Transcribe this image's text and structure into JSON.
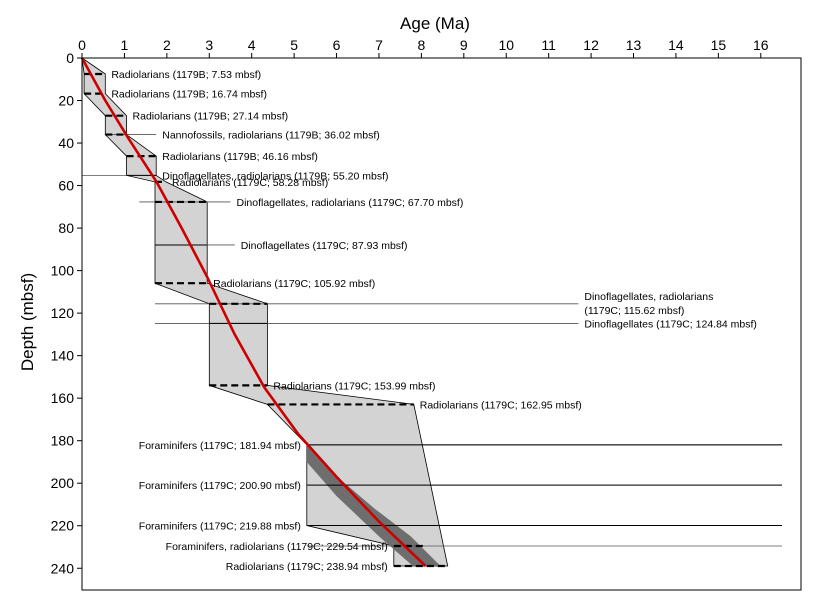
{
  "chart_data": {
    "type": "line",
    "xlabel": "Age (Ma)",
    "ylabel": "Depth (mbsf)",
    "xlim": [
      0,
      17
    ],
    "ylim": [
      250,
      0
    ],
    "x_ticks": [
      0,
      1,
      2,
      3,
      4,
      5,
      6,
      7,
      8,
      9,
      10,
      11,
      12,
      13,
      14,
      15,
      16
    ],
    "y_ticks": [
      0,
      20,
      40,
      60,
      80,
      100,
      120,
      140,
      160,
      180,
      200,
      220,
      240
    ],
    "x_axis_position": "top",
    "grid": false,
    "colors": {
      "age_model": "#cc0000",
      "uncertainty_envelope": "#d3d3d3",
      "inner_envelope": "#6e6e6e"
    },
    "envelope_polygon": [
      [
        0,
        0
      ],
      [
        0.55,
        7.53
      ],
      [
        0.55,
        16.74
      ],
      [
        1.05,
        27.14
      ],
      [
        1.05,
        36.02
      ],
      [
        1.75,
        46.16
      ],
      [
        1.75,
        55.2
      ],
      [
        1.98,
        58.28
      ],
      [
        2.95,
        67.7
      ],
      [
        2.95,
        105.92
      ],
      [
        4.37,
        115.62
      ],
      [
        4.37,
        153.99
      ],
      [
        7.82,
        162.95
      ],
      [
        8.62,
        238.94
      ],
      [
        7.35,
        238.94
      ],
      [
        7.35,
        229.54
      ],
      [
        5.3,
        219.88
      ],
      [
        5.3,
        181.94
      ],
      [
        4.37,
        162.95
      ],
      [
        3.0,
        153.99
      ],
      [
        3.0,
        115.62
      ],
      [
        1.72,
        105.92
      ],
      [
        1.72,
        58.28
      ],
      [
        1.05,
        55.2
      ],
      [
        1.05,
        46.16
      ],
      [
        0.55,
        36.02
      ],
      [
        0.55,
        27.14
      ],
      [
        0.05,
        16.74
      ],
      [
        0.05,
        7.53
      ]
    ],
    "inner_envelope_polygon": [
      [
        5.3,
        181.94
      ],
      [
        5.9,
        195
      ],
      [
        6.9,
        212
      ],
      [
        7.75,
        225
      ],
      [
        8.45,
        238.94
      ],
      [
        7.8,
        238.94
      ],
      [
        7.0,
        225
      ],
      [
        6.0,
        206
      ],
      [
        5.3,
        190
      ]
    ],
    "age_model_line": {
      "x": [
        0,
        0.55,
        1.1,
        1.75,
        2.35,
        2.95,
        3.6,
        4.3,
        5.1,
        6.0,
        7.0,
        8.1
      ],
      "y": [
        0,
        20,
        38,
        58,
        80,
        103,
        130,
        155,
        177,
        197,
        218,
        238.94
      ]
    },
    "datums": [
      {
        "label": "Radiolarians (1179B; 7.53 mbsf)",
        "depth": 7.53,
        "x_min": 0.05,
        "x_max": 0.55,
        "dashed": true
      },
      {
        "label": "Radiolarians (1179B; 16.74 mbsf)",
        "depth": 16.74,
        "x_min": 0.05,
        "x_max": 0.55,
        "dashed": true
      },
      {
        "label": "Radiolarians (1179B; 27.14 mbsf)",
        "depth": 27.14,
        "x_min": 0.55,
        "x_max": 1.05,
        "dashed": true
      },
      {
        "label": "Nannofossils, radiolarians (1179B; 36.02 mbsf)",
        "depth": 36.02,
        "x_min": 0.55,
        "x_max": 1.05,
        "dashed": true,
        "leader_to": 1.75
      },
      {
        "label": "Radiolarians (1179B; 46.16 mbsf)",
        "depth": 46.16,
        "x_min": 1.05,
        "x_max": 1.75,
        "dashed": true
      },
      {
        "label": "Dinoflagellates, radiolarians (1179B; 55.20 mbsf)",
        "depth": 55.2,
        "x_min": 1.05,
        "x_max": 1.75,
        "dashed": false,
        "leader_from": 0
      },
      {
        "label": "Radiolarians (1179C; 58.28 mbsf)",
        "depth": 58.28,
        "x_min": 1.72,
        "x_max": 1.98,
        "dashed": true
      },
      {
        "label": "Dinoflagellates, radiolarians (1179C; 67.70 mbsf)",
        "depth": 67.7,
        "x_min": 1.72,
        "x_max": 2.95,
        "dashed": true,
        "leader_from": 1.35,
        "leader_to": 3.5
      },
      {
        "label": "Dinoflagellates (1179C; 87.93 mbsf)",
        "depth": 87.93,
        "x_min": 1.72,
        "x_max": 2.95,
        "dashed": false,
        "leader_to": 3.6
      },
      {
        "label": "Radiolarians (1179C; 105.92 mbsf)",
        "depth": 105.92,
        "x_min": 1.72,
        "x_max": 2.95,
        "dashed": true
      },
      {
        "label": "Dinoflagellates, radiolarians",
        "label2": "(1179C; 115.62 mbsf)",
        "depth": 115.62,
        "x_min": 3.0,
        "x_max": 4.37,
        "dashed": true,
        "leader_from": 1.72,
        "leader_to": 11.7
      },
      {
        "label": "Dinoflagellates (1179C; 124.84 mbsf)",
        "depth": 124.84,
        "x_min": 3.0,
        "x_max": 4.37,
        "dashed": false,
        "leader_from": 1.72,
        "leader_to": 11.7
      },
      {
        "label": "Radiolarians (1179C; 153.99 mbsf)",
        "depth": 153.99,
        "x_min": 3.0,
        "x_max": 4.37,
        "dashed": true
      },
      {
        "label": "Radiolarians (1179C; 162.95 mbsf)",
        "depth": 162.95,
        "x_min": 4.37,
        "x_max": 7.82,
        "dashed": true
      },
      {
        "label": "Foraminifers (1179C; 181.94 mbsf)",
        "depth": 181.94,
        "x_min": 5.3,
        "x_max": 16.5,
        "dashed": false,
        "label_left": true
      },
      {
        "label": "Foraminifers (1179C; 200.90 mbsf)",
        "depth": 200.9,
        "x_min": 5.3,
        "x_max": 16.5,
        "dashed": false,
        "label_left": true
      },
      {
        "label": "Foraminifers (1179C; 219.88 mbsf)",
        "depth": 219.88,
        "x_min": 5.3,
        "x_max": 16.5,
        "dashed": false,
        "label_left": true
      },
      {
        "label": "Foraminifers, radiolarians (1179C; 229.54 mbsf)",
        "depth": 229.54,
        "x_min": 7.35,
        "x_max": 8.05,
        "dashed": true,
        "leader_from": 5.3,
        "leader_to": 16.5,
        "label_left": true
      },
      {
        "label": "Radiolarians (1179C; 238.94 mbsf)",
        "depth": 238.94,
        "x_min": 7.35,
        "x_max": 8.62,
        "dashed": true,
        "label_left": true
      }
    ]
  }
}
